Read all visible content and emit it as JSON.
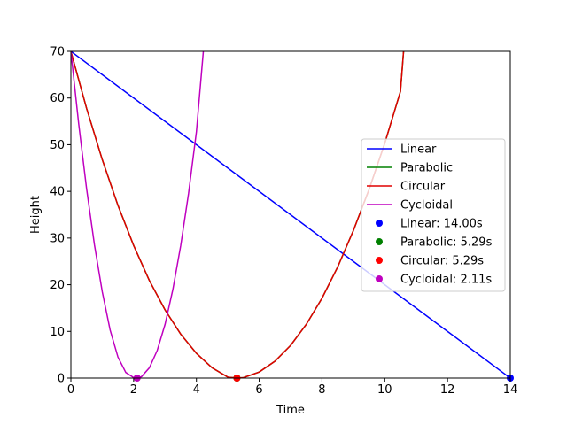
{
  "chart_data": {
    "type": "line",
    "title": "",
    "xlabel": "Time",
    "ylabel": "Height",
    "xlim": [
      0,
      14
    ],
    "ylim": [
      0,
      70
    ],
    "xticks": [
      "0",
      "2",
      "4",
      "6",
      "8",
      "10",
      "12",
      "14"
    ],
    "yticks": [
      "0",
      "10",
      "20",
      "30",
      "40",
      "50",
      "60",
      "70"
    ],
    "grid": false,
    "legend_position": "center-right",
    "series": [
      {
        "name": "Linear",
        "color": "#0000ff",
        "x": [
          0,
          14
        ],
        "y": [
          70,
          0
        ]
      },
      {
        "name": "Parabolic",
        "color": "#008000",
        "x": [
          0,
          0.5,
          1,
          1.5,
          2,
          2.5,
          3,
          3.5,
          4,
          4.5,
          5,
          5.29,
          5.5,
          6,
          6.5,
          7,
          7.5,
          8,
          8.5,
          9,
          9.5,
          10,
          10.5,
          10.6
        ],
        "y": [
          70,
          57.8,
          46.8,
          37.0,
          28.4,
          20.9,
          14.6,
          9.4,
          5.3,
          2.2,
          0.2,
          0,
          0.1,
          1.3,
          3.6,
          7.0,
          11.5,
          17.1,
          23.8,
          31.6,
          40.4,
          50.3,
          61.4,
          70
        ]
      },
      {
        "name": "Circular",
        "color": "#e00000",
        "x": [
          0,
          0.5,
          1,
          1.5,
          2,
          2.5,
          3,
          3.5,
          4,
          4.5,
          5,
          5.29,
          5.5,
          6,
          6.5,
          7,
          7.5,
          8,
          8.5,
          9,
          9.5,
          10,
          10.5,
          10.6
        ],
        "y": [
          70,
          57.8,
          46.8,
          37.0,
          28.4,
          20.9,
          14.6,
          9.4,
          5.3,
          2.2,
          0.2,
          0,
          0.1,
          1.3,
          3.6,
          7.0,
          11.5,
          17.1,
          23.8,
          31.6,
          40.4,
          50.3,
          61.4,
          70
        ]
      },
      {
        "name": "Cycloidal",
        "color": "#bf00bf",
        "x": [
          0,
          0.25,
          0.5,
          0.75,
          1.0,
          1.25,
          1.5,
          1.75,
          2.0,
          2.11,
          2.25,
          2.5,
          2.75,
          3.0,
          3.25,
          3.5,
          3.75,
          4.0,
          4.22
        ],
        "y": [
          70,
          54.4,
          40.6,
          28.6,
          18.5,
          10.3,
          4.5,
          1.2,
          0.1,
          0,
          0.3,
          2.2,
          5.9,
          11.5,
          19.0,
          28.4,
          39.6,
          52.8,
          70
        ]
      }
    ],
    "points": [
      {
        "name": "Linear: 14.00s",
        "color": "#0000ff",
        "x": 14.0,
        "y": 0
      },
      {
        "name": "Parabolic: 5.29s",
        "color": "#008000",
        "x": 5.29,
        "y": 0
      },
      {
        "name": "Circular: 5.29s",
        "color": "#ff0000",
        "x": 5.29,
        "y": 0
      },
      {
        "name": "Cycloidal: 2.11s",
        "color": "#bf00bf",
        "x": 2.11,
        "y": 0
      }
    ]
  }
}
